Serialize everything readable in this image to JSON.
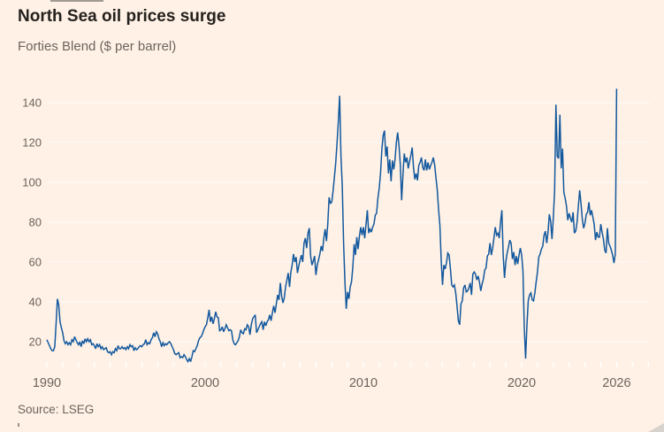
{
  "chart_data": {
    "type": "line",
    "title": "North Sea oil prices surge",
    "subtitle": "Forties Blend ($ per barrel)",
    "source": "Source: LSEG",
    "ylabel": "$ per barrel",
    "series_name": "Forties Blend crude oil price",
    "line_color": "#12589e",
    "x_start": 1990,
    "x_step_years": 0.08333333,
    "x_axis_range": [
      1990,
      2026
    ],
    "y_ticks": [
      20,
      40,
      60,
      80,
      100,
      120,
      140
    ],
    "x_tick_labels": [
      {
        "t": 1990,
        "label": "1990"
      },
      {
        "t": 2000,
        "label": "2000"
      },
      {
        "t": 2010,
        "label": "2010"
      },
      {
        "t": 2020,
        "label": "2020"
      },
      {
        "t": 2026,
        "label": "2026"
      }
    ],
    "values": [
      21,
      19.5,
      18,
      16.5,
      15.5,
      15.5,
      17.5,
      29,
      41.5,
      38.5,
      30,
      27,
      24.5,
      20.5,
      19,
      20,
      18.5,
      19.5,
      18.5,
      21,
      20,
      22.5,
      21,
      19.5,
      18.5,
      20,
      17.5,
      20.5,
      19,
      21.5,
      20,
      21.5,
      20,
      21,
      18.5,
      19,
      18,
      16.5,
      19,
      17.5,
      18.5,
      16.5,
      17.5,
      16,
      16.5,
      17,
      15,
      14.5,
      15,
      13.5,
      15,
      14.5,
      16.5,
      15.5,
      18,
      16.5,
      16.5,
      17.5,
      16.5,
      17,
      16,
      17.5,
      16.5,
      18.5,
      17.5,
      18,
      15.5,
      17,
      16,
      16.5,
      17.5,
      18,
      17.5,
      18.5,
      19,
      21,
      18.5,
      19.5,
      19,
      21,
      22,
      24.5,
      22.5,
      25,
      24,
      21.5,
      20,
      17.5,
      19.5,
      18,
      19,
      18.5,
      19.5,
      20,
      19,
      17.5,
      16,
      14,
      13.5,
      14,
      14.5,
      12,
      12.5,
      12,
      13.5,
      12.5,
      11,
      10,
      11.5,
      10,
      12.5,
      15.5,
      15,
      16.5,
      18,
      20.5,
      22,
      22.5,
      24,
      26,
      27.5,
      28.5,
      32,
      36,
      30,
      32.5,
      29,
      31.5,
      35,
      32.5,
      32,
      25.5,
      26,
      27.5,
      25,
      26.5,
      28.5,
      27,
      25.5,
      26,
      25.5,
      21,
      19,
      18.5,
      19.5,
      20.5,
      22.5,
      26,
      24.5,
      24,
      26.5,
      26,
      28.5,
      27.5,
      23.5,
      28.5,
      31.5,
      32.5,
      33.5,
      24.5,
      26,
      27.5,
      29,
      30,
      26,
      30,
      28,
      30,
      31,
      33.5,
      30.5,
      34.5,
      38,
      34.5,
      39,
      43.5,
      41,
      49.5,
      43,
      39.5,
      42,
      47.5,
      51,
      54.5,
      47.5,
      55,
      58.5,
      64,
      60,
      62.5,
      54.5,
      58,
      61,
      63.5,
      60,
      69.5,
      72,
      67,
      74.5,
      77,
      63,
      58.5,
      60.5,
      63,
      53.5,
      58.5,
      61,
      64,
      68,
      65.5,
      72,
      76.5,
      70.5,
      79,
      92.5,
      89.5,
      90,
      95.5,
      102.5,
      109.5,
      119.5,
      130.5,
      143.5,
      113,
      98,
      69.5,
      50,
      36.5,
      45,
      41.5,
      47.5,
      50,
      57.5,
      69,
      63.5,
      72.5,
      66.5,
      73,
      77.5,
      73.5,
      77.5,
      72,
      79,
      86,
      74.5,
      76.5,
      75,
      77.5,
      79,
      83.5,
      84.5,
      92,
      97,
      104.5,
      116.5,
      123.5,
      126,
      113,
      118,
      104.5,
      111.5,
      100.5,
      111,
      106.5,
      111.5,
      120,
      125,
      118.5,
      109,
      91,
      104,
      114.5,
      110,
      112.5,
      107,
      110.5,
      113.5,
      117.5,
      107.5,
      101.5,
      104.5,
      101,
      108.5,
      110,
      112.5,
      107.5,
      106,
      111.5,
      106,
      110,
      106.5,
      108.5,
      110,
      112.5,
      109,
      102.5,
      96.5,
      86.5,
      78.5,
      61,
      48.5,
      58.5,
      56.5,
      59.5,
      64.5,
      63.5,
      56.5,
      48.5,
      47.5,
      48.5,
      44.5,
      38,
      30.5,
      28.5,
      39,
      40.5,
      47,
      48.5,
      45,
      45.5,
      47,
      49.5,
      43.5,
      54,
      55,
      54,
      51,
      53,
      50,
      45.5,
      49,
      51.5,
      56,
      57,
      63,
      64,
      69.5,
      63.5,
      67,
      72,
      77.5,
      73.5,
      74.5,
      72,
      80,
      86,
      63.5,
      52,
      60,
      64.5,
      67.5,
      71,
      69.5,
      61.5,
      65,
      58.5,
      63,
      59,
      63.5,
      67,
      63.5,
      55.5,
      27,
      11.5,
      28,
      40.5,
      43.5,
      44.5,
      41,
      40.5,
      44.5,
      50,
      55,
      62.5,
      64,
      66.5,
      68,
      73.5,
      75.5,
      69.5,
      75,
      84,
      80.5,
      71.5,
      82,
      96,
      139,
      113,
      112,
      134,
      107,
      117,
      95,
      92,
      88,
      81,
      84.5,
      82,
      80,
      85,
      74.5,
      75.5,
      80,
      88,
      96,
      89.5,
      81.5,
      77,
      79.5,
      84,
      85,
      90,
      83.5,
      86,
      82.5,
      79,
      71,
      75,
      72.5,
      72.5,
      79,
      75,
      71.5,
      66,
      64.5,
      77,
      69.5,
      68,
      66,
      63.5,
      59.5,
      64,
      147
    ]
  },
  "decorations": {
    "grid_color": "rgba(255,255,255,0.75)",
    "tick_color": "rgba(255,255,255,0.9)",
    "label_color": "#6b645e"
  }
}
